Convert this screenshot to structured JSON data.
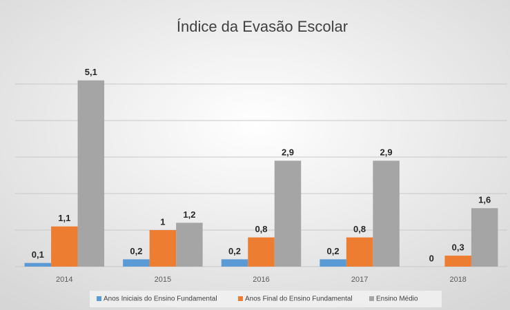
{
  "chart_data": {
    "type": "bar",
    "title": "Índice da Evasão Escolar",
    "categories": [
      "2014",
      "2015",
      "2016",
      "2017",
      "2018"
    ],
    "series": [
      {
        "name": "Anos Iniciais do Ensino Fundamental",
        "color": "#5b9bd5",
        "values": [
          0.1,
          0.2,
          0.2,
          0.2,
          0
        ],
        "value_labels": [
          "0,1",
          "0,2",
          "0,2",
          "0,2",
          "0"
        ]
      },
      {
        "name": "Anos Final do Ensino Fundamental",
        "color": "#ed7d31",
        "values": [
          1.1,
          1,
          0.8,
          0.8,
          0.3
        ],
        "value_labels": [
          "1,1",
          "1",
          "0,8",
          "0,8",
          "0,3"
        ]
      },
      {
        "name": "Ensino Médio",
        "color": "#a5a5a5",
        "values": [
          5.1,
          1.2,
          2.9,
          2.9,
          1.6
        ],
        "value_labels": [
          "5,1",
          "1,2",
          "2,9",
          "2,9",
          "1,6"
        ]
      }
    ],
    "ylim": [
      0,
      6
    ],
    "yticks": [
      0,
      1,
      2,
      3,
      4,
      5
    ],
    "grid": true,
    "legend": "bottom"
  }
}
